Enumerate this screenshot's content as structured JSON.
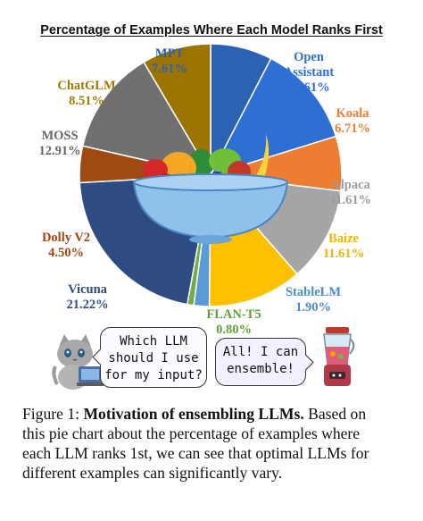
{
  "chart_data": {
    "type": "pie",
    "title": "Percentage of Examples Where Each Model Ranks First",
    "slices": [
      {
        "name": "MPT",
        "value": 7.61,
        "value_label": "7.61%",
        "color": "#2c62b3",
        "label_color": "#2c62b3"
      },
      {
        "name": "Open Assistant",
        "value": 12.61,
        "value_label": "12.61%",
        "color": "#2e6fd4",
        "label_color": "#2e6fd4"
      },
      {
        "name": "Koala",
        "value": 6.71,
        "value_label": "6.71%",
        "color": "#ed7d31",
        "label_color": "#ed7d31"
      },
      {
        "name": "Alpaca",
        "value": 11.61,
        "value_label": "11.61%",
        "color": "#a5a5a5",
        "label_color": "#9c9c9c"
      },
      {
        "name": "Baize",
        "value": 11.61,
        "value_label": "11.61%",
        "color": "#ffc000",
        "label_color": "#f0b400"
      },
      {
        "name": "StableLM",
        "value": 1.9,
        "value_label": "1.90%",
        "color": "#5b9bd5",
        "label_color": "#4a8ccc"
      },
      {
        "name": "FLAN-T5",
        "value": 0.8,
        "value_label": "0.80%",
        "color": "#70ad47",
        "label_color": "#5fa03a"
      },
      {
        "name": "Vicuna",
        "value": 21.22,
        "value_label": "21.22%",
        "color": "#2f4c82",
        "label_color": "#2f4c82"
      },
      {
        "name": "Dolly V2",
        "value": 4.5,
        "value_label": "4.50%",
        "color": "#9e4a12",
        "label_color": "#a8450e"
      },
      {
        "name": "MOSS",
        "value": 12.91,
        "value_label": "12.91%",
        "color": "#707070",
        "label_color": "#666666"
      },
      {
        "name": "ChatGLM",
        "value": 8.51,
        "value_label": "8.51%",
        "color": "#9e7400",
        "label_color": "#a27a00"
      }
    ],
    "legend": "none"
  },
  "bubbles": {
    "left": [
      "Which LLM",
      "should I use",
      "for my input?"
    ],
    "right": [
      "All! I can",
      "ensemble!"
    ]
  },
  "caption": {
    "label": "Figure 1:",
    "bold": "Motivation of ensembling LLMs.",
    "line1_rest": "Based on",
    "line2": "this pie chart about the percentage of examples where",
    "line3": "each LLM ranks 1st, we can see that optimal LLMs for",
    "line4": "different examples can significantly vary."
  }
}
